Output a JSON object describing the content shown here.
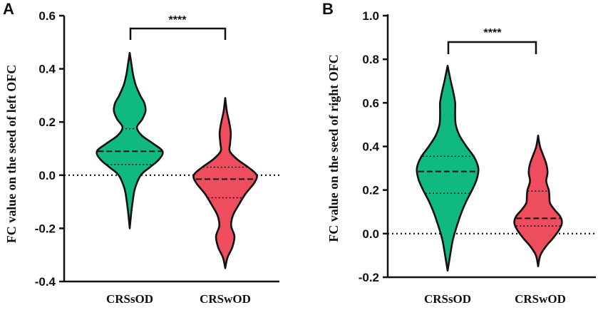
{
  "colors": {
    "green": "#10B981",
    "red": "#EE4D5E",
    "axis": "#111111"
  },
  "chart_data": [
    {
      "type": "violin",
      "panel": "A",
      "ylabel": "FC value on the seed of  left OFC",
      "ylim": [
        -0.4,
        0.6
      ],
      "yticks": [
        "-0.4",
        "-0.2",
        "0.0",
        "0.2",
        "0.4",
        "0.6"
      ],
      "reference_line": 0.0,
      "significance": "****",
      "categories": [
        "CRSsOD",
        "CRSwOD"
      ],
      "series": [
        {
          "name": "CRSsOD",
          "color": "#10B981",
          "median": 0.09,
          "q1": 0.04,
          "q3": 0.175,
          "min": -0.2,
          "max": 0.46,
          "density_y": [
            -0.2,
            -0.15,
            -0.1,
            -0.05,
            0.0,
            0.03,
            0.06,
            0.09,
            0.12,
            0.15,
            0.18,
            0.21,
            0.24,
            0.27,
            0.3,
            0.34,
            0.38,
            0.42,
            0.46
          ],
          "density_w": [
            0.0,
            0.04,
            0.09,
            0.16,
            0.34,
            0.62,
            0.9,
            1.0,
            0.7,
            0.36,
            0.22,
            0.38,
            0.48,
            0.45,
            0.32,
            0.18,
            0.1,
            0.05,
            0.0
          ]
        },
        {
          "name": "CRSwOD",
          "color": "#EE4D5E",
          "median": -0.015,
          "q1": -0.085,
          "q3": 0.03,
          "min": -0.35,
          "max": 0.29,
          "density_y": [
            -0.35,
            -0.31,
            -0.27,
            -0.23,
            -0.19,
            -0.15,
            -0.11,
            -0.07,
            -0.03,
            0.0,
            0.03,
            0.06,
            0.09,
            0.12,
            0.16,
            0.2,
            0.24,
            0.29
          ],
          "density_w": [
            0.0,
            0.07,
            0.22,
            0.28,
            0.18,
            0.24,
            0.42,
            0.62,
            0.88,
            0.96,
            0.7,
            0.36,
            0.14,
            0.15,
            0.17,
            0.12,
            0.05,
            0.0
          ]
        }
      ]
    },
    {
      "type": "violin",
      "panel": "B",
      "ylabel": "FC value on the seed of right OFC",
      "ylim": [
        -0.2,
        1.0
      ],
      "yticks": [
        "-0.2",
        "0.0",
        "0.2",
        "0.4",
        "0.6",
        "0.8",
        "1.0"
      ],
      "reference_line": 0.0,
      "significance": "****",
      "categories": [
        "CRSsOD",
        "CRSwOD"
      ],
      "series": [
        {
          "name": "CRSsOD",
          "color": "#10B981",
          "median": 0.285,
          "q1": 0.185,
          "q3": 0.355,
          "min": -0.17,
          "max": 0.77,
          "density_y": [
            -0.17,
            -0.1,
            -0.04,
            0.0,
            0.05,
            0.1,
            0.15,
            0.2,
            0.25,
            0.3,
            0.35,
            0.4,
            0.45,
            0.5,
            0.55,
            0.6,
            0.65,
            0.7,
            0.77
          ],
          "density_w": [
            0.0,
            0.08,
            0.15,
            0.22,
            0.33,
            0.45,
            0.6,
            0.78,
            0.93,
            0.98,
            0.85,
            0.6,
            0.38,
            0.26,
            0.24,
            0.24,
            0.18,
            0.1,
            0.0
          ]
        },
        {
          "name": "CRSwOD",
          "color": "#EE4D5E",
          "median": 0.07,
          "q1": 0.035,
          "q3": 0.195,
          "min": -0.15,
          "max": 0.45,
          "density_y": [
            -0.15,
            -0.1,
            -0.06,
            -0.02,
            0.02,
            0.05,
            0.08,
            0.11,
            0.14,
            0.17,
            0.2,
            0.24,
            0.28,
            0.32,
            0.36,
            0.4,
            0.45
          ],
          "density_w": [
            0.0,
            0.07,
            0.24,
            0.48,
            0.68,
            0.76,
            0.7,
            0.52,
            0.38,
            0.36,
            0.34,
            0.26,
            0.3,
            0.26,
            0.16,
            0.06,
            0.0
          ]
        }
      ]
    }
  ]
}
